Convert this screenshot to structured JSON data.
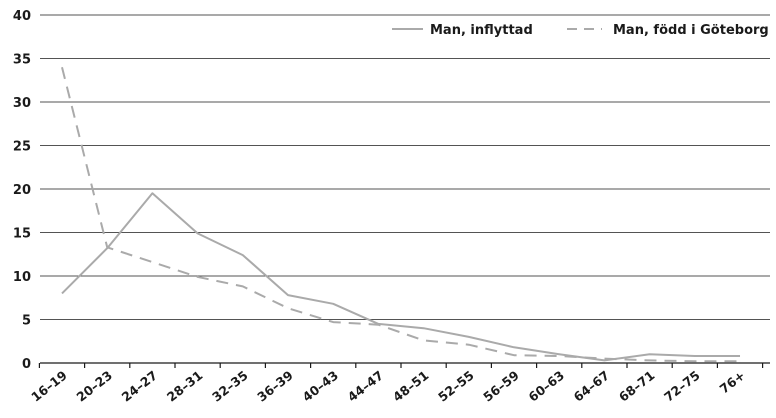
{
  "chart_data": {
    "type": "line",
    "categories": [
      "16–19",
      "20–23",
      "24–27",
      "28–31",
      "32–35",
      "36–39",
      "40–43",
      "44–47",
      "48–51",
      "52–55",
      "56–59",
      "60–63",
      "64–67",
      "68–71",
      "72–75",
      "76+"
    ],
    "series": [
      {
        "name": "Man, inflyttad",
        "style": "solid",
        "color": "#aaaaaa",
        "values": [
          8.0,
          13.2,
          19.5,
          14.9,
          12.4,
          7.8,
          6.8,
          4.5,
          4.0,
          3.0,
          1.8,
          1.0,
          0.3,
          1.0,
          0.8,
          0.8
        ]
      },
      {
        "name": "Man, född i Göteborg",
        "style": "dashed",
        "color": "#aaaaaa",
        "values": [
          34.0,
          13.3,
          11.6,
          9.9,
          8.8,
          6.3,
          4.7,
          4.4,
          2.6,
          2.1,
          0.9,
          0.8,
          0.5,
          0.3,
          0.2,
          0.2
        ]
      }
    ],
    "ylim": [
      0,
      40
    ],
    "yticks": [
      "0",
      "5",
      "10",
      "15",
      "20",
      "25",
      "30",
      "35",
      "40"
    ],
    "grid": true,
    "legend": "top-right"
  }
}
